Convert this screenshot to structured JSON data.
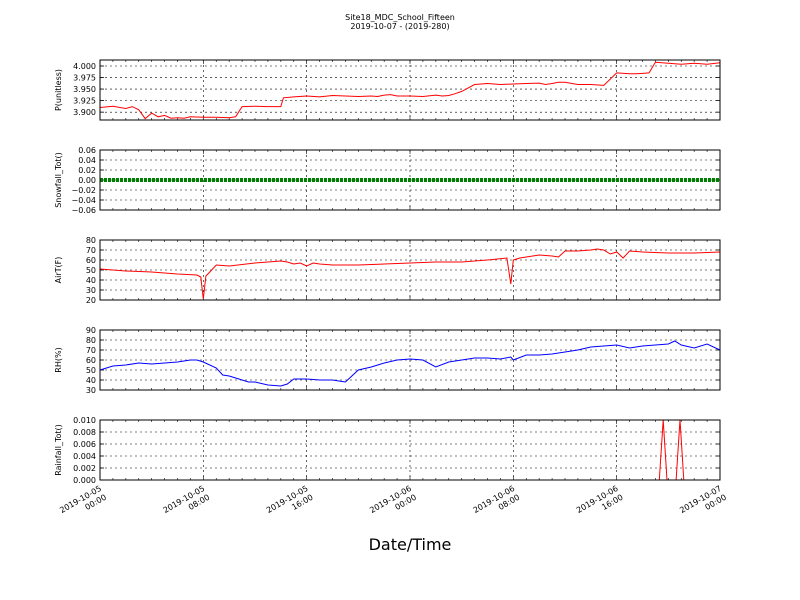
{
  "figure": {
    "title": "Site18_MDC_School_Fifteen",
    "subtitle": "2019-10-07 - (2019-280)",
    "xlabel": "Date/Time"
  },
  "chart_data": [
    {
      "type": "line",
      "ylabel": "P(unitless)",
      "ylim": [
        3.883,
        4.013
      ],
      "yticks": [
        "3.900",
        "3.925",
        "3.950",
        "3.975",
        "4.000"
      ],
      "ytick_values": [
        3.9,
        3.925,
        3.95,
        3.975,
        4.0
      ],
      "xlim": [
        0,
        48
      ],
      "grid": true,
      "color": "#ff0000",
      "series": [
        {
          "x": [
            0,
            1,
            2,
            2.5,
            3,
            3.5,
            4,
            4.5,
            5,
            5.5,
            6,
            6.5,
            7,
            8,
            9,
            10,
            10.5,
            11,
            12,
            13,
            14,
            14.2,
            15,
            16,
            17,
            18,
            19,
            20,
            21,
            21.5,
            22,
            22.5,
            23,
            24,
            25,
            26,
            26.5,
            27,
            27.5,
            28,
            29,
            30,
            31,
            32,
            33,
            34,
            34.5,
            35,
            35.5,
            36,
            37,
            38,
            39,
            40,
            41,
            41.5,
            42,
            42.5,
            43,
            44,
            44.5,
            45,
            46,
            47,
            48
          ],
          "y": [
            3.91,
            3.913,
            3.908,
            3.912,
            3.905,
            3.886,
            3.898,
            3.89,
            3.893,
            3.887,
            3.888,
            3.887,
            3.89,
            3.889,
            3.889,
            3.888,
            3.89,
            3.912,
            3.913,
            3.912,
            3.912,
            3.931,
            3.933,
            3.935,
            3.933,
            3.936,
            3.935,
            3.934,
            3.935,
            3.934,
            3.937,
            3.938,
            3.935,
            3.935,
            3.934,
            3.937,
            3.935,
            3.936,
            3.94,
            3.945,
            3.96,
            3.962,
            3.96,
            3.961,
            3.962,
            3.963,
            3.96,
            3.962,
            3.965,
            3.965,
            3.96,
            3.96,
            3.958,
            3.985,
            3.983,
            3.983,
            3.984,
            3.985,
            4.008,
            4.006,
            4.005,
            4.004,
            4.006,
            4.004,
            4.007
          ]
        }
      ]
    },
    {
      "type": "line",
      "ylabel": "Snowfall_Tot()",
      "ylim": [
        -0.06,
        0.06
      ],
      "yticks": [
        "−0.06",
        "−0.04",
        "−0.02",
        "0.00",
        "0.02",
        "0.04",
        "0.06"
      ],
      "ytick_values": [
        -0.06,
        -0.04,
        -0.02,
        0,
        0.02,
        0.04,
        0.06
      ],
      "xlim": [
        0,
        48
      ],
      "grid": true,
      "color": "#008000",
      "series": [
        {
          "x": [
            0,
            48
          ],
          "y": [
            0,
            0
          ]
        }
      ]
    },
    {
      "type": "line",
      "ylabel": "AirT(F)",
      "ylim": [
        20,
        80
      ],
      "yticks": [
        "20",
        "30",
        "40",
        "50",
        "60",
        "70",
        "80"
      ],
      "ytick_values": [
        20,
        30,
        40,
        50,
        60,
        70,
        80
      ],
      "xlim": [
        0,
        48
      ],
      "grid": true,
      "color": "#ff0000",
      "series": [
        {
          "x": [
            0,
            2,
            4,
            6,
            7.5,
            7.8,
            8,
            8.2,
            8.5,
            9,
            10,
            12,
            13,
            14,
            14.5,
            15,
            15.5,
            16,
            16.5,
            17,
            18,
            20,
            22,
            24,
            26,
            28,
            30,
            31.5,
            31.8,
            32,
            32.5,
            33,
            34,
            35,
            35.5,
            36,
            37,
            38,
            38.5,
            39,
            39.5,
            40,
            40.5,
            41,
            42,
            44,
            46,
            48
          ],
          "y": [
            51,
            49,
            48,
            46,
            45,
            43,
            21,
            44,
            48,
            55,
            54,
            57,
            58,
            59,
            58,
            56,
            57,
            54,
            57,
            56,
            55,
            55,
            56,
            57,
            58,
            58,
            60,
            62,
            36,
            60,
            62,
            63,
            65,
            64,
            63,
            69,
            69,
            70,
            71,
            70,
            66,
            68,
            62,
            69,
            68,
            67,
            67,
            68
          ]
        }
      ]
    },
    {
      "type": "line",
      "ylabel": "RH(%)",
      "ylim": [
        30,
        90
      ],
      "yticks": [
        "30",
        "40",
        "50",
        "60",
        "70",
        "80",
        "90"
      ],
      "ytick_values": [
        30,
        40,
        50,
        60,
        70,
        80,
        90
      ],
      "xlim": [
        0,
        48
      ],
      "grid": true,
      "color": "#0000ff",
      "series": [
        {
          "x": [
            0,
            1,
            2,
            3,
            4,
            5,
            6,
            7,
            7.5,
            8,
            9,
            9.5,
            10,
            11,
            11.5,
            12,
            13,
            14,
            14.5,
            15,
            16,
            17,
            18,
            19,
            20,
            21,
            22,
            23,
            24,
            25,
            26,
            27,
            28,
            29,
            30,
            31,
            31.8,
            32,
            33,
            34,
            35,
            36,
            37,
            38,
            39,
            40,
            41,
            42,
            43,
            44,
            44.5,
            45,
            46,
            47,
            48
          ],
          "y": [
            50,
            54,
            55,
            57,
            56,
            57,
            58,
            60,
            60,
            58,
            52,
            45,
            44,
            40,
            38,
            38,
            35,
            34,
            36,
            41,
            41,
            40,
            40,
            38,
            50,
            53,
            57,
            60,
            61,
            60,
            53,
            58,
            60,
            62,
            62,
            61,
            63,
            60,
            65,
            65,
            66,
            68,
            70,
            73,
            74,
            75,
            72,
            74,
            75,
            76,
            79,
            75,
            72,
            76,
            70
          ]
        }
      ]
    },
    {
      "type": "line",
      "ylabel": "Rainfall_Tot()",
      "ylim": [
        0,
        0.01
      ],
      "yticks": [
        "0.000",
        "0.002",
        "0.004",
        "0.006",
        "0.008",
        "0.010"
      ],
      "ytick_values": [
        0,
        0.002,
        0.004,
        0.006,
        0.008,
        0.01
      ],
      "xlim": [
        0,
        48
      ],
      "grid": true,
      "color": "#ff0000",
      "series": [
        {
          "x": [
            0,
            43.3,
            43.6,
            43.9,
            44.6,
            44.9,
            45.2,
            48
          ],
          "y": [
            0,
            0,
            0.01,
            0,
            0,
            0.01,
            0,
            0
          ]
        }
      ]
    }
  ],
  "xaxis": {
    "tick_values": [
      0,
      8,
      16,
      24,
      32,
      40,
      48
    ],
    "tick_labels": [
      [
        "2019-10-05",
        "00:00"
      ],
      [
        "2019-10-05",
        "08:00"
      ],
      [
        "2019-10-05",
        "16:00"
      ],
      [
        "2019-10-06",
        "00:00"
      ],
      [
        "2019-10-06",
        "08:00"
      ],
      [
        "2019-10-06",
        "16:00"
      ],
      [
        "2019-10-07",
        "00:00"
      ]
    ]
  }
}
